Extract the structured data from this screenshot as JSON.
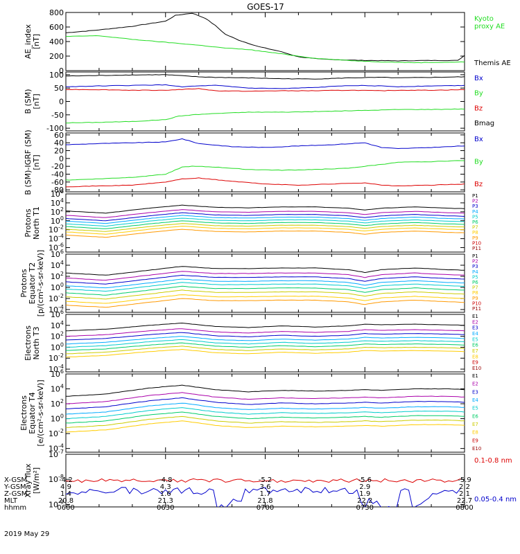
{
  "title": "GOES-17",
  "colors": {
    "black": "#000000",
    "blue": "#0000cc",
    "green": "#22dd22",
    "red": "#dd0000",
    "p1": "#000000",
    "p2": "#aa00aa",
    "p3": "#0000cc",
    "p4": "#00aaff",
    "p5": "#00cccc",
    "p6": "#00cc66",
    "p7": "#cccc00",
    "p8": "#ffcc00",
    "p9": "#ff9900",
    "p10": "#cc0000",
    "p11": "#990000"
  },
  "chart_data": [
    {
      "type": "line",
      "ylabel": "AE_index\n[nT]",
      "ylim": [
        0,
        800
      ],
      "ticks": [
        "800",
        "600",
        "400",
        "200",
        "0"
      ],
      "legend": [
        {
          "label": "Kyoto\nproxy AE",
          "color": "green"
        },
        {
          "label": "Themis AE",
          "color": "black"
        }
      ],
      "series": [
        {
          "name": "Themis AE",
          "color": "black",
          "x": [
            0,
            10,
            20,
            30,
            33,
            38,
            42,
            45,
            48,
            52,
            58,
            64,
            70,
            76,
            82,
            90,
            100,
            110,
            118,
            120
          ],
          "y": [
            520,
            560,
            610,
            680,
            760,
            790,
            720,
            620,
            500,
            420,
            330,
            270,
            190,
            160,
            150,
            140,
            135,
            140,
            140,
            210
          ]
        },
        {
          "name": "Kyoto proxy AE",
          "color": "green",
          "x": [
            0,
            10,
            20,
            30,
            40,
            48,
            55,
            65,
            75,
            85,
            95,
            105,
            115,
            120
          ],
          "y": [
            470,
            480,
            430,
            390,
            350,
            310,
            290,
            230,
            170,
            140,
            120,
            110,
            115,
            120
          ]
        }
      ]
    },
    {
      "type": "line",
      "ylabel": "B (SM)\n[nT]",
      "ylim": [
        -110,
        110
      ],
      "ticks": [
        "100",
        "50",
        "0",
        "-50",
        "-100"
      ],
      "legend": [
        {
          "label": "Bx",
          "color": "blue"
        },
        {
          "label": "By",
          "color": "green"
        },
        {
          "label": "Bz",
          "color": "red"
        },
        {
          "label": "Bmag",
          "color": "black"
        }
      ],
      "series": [
        {
          "name": "Bmag",
          "color": "black",
          "x": [
            0,
            10,
            20,
            30,
            35,
            40,
            45,
            55,
            65,
            75,
            85,
            95,
            100,
            110,
            120
          ],
          "y": [
            95,
            97,
            99,
            100,
            96,
            92,
            90,
            88,
            85,
            84,
            88,
            90,
            88,
            90,
            92
          ]
        },
        {
          "name": "Bx",
          "color": "blue",
          "x": [
            0,
            10,
            20,
            30,
            35,
            40,
            45,
            55,
            65,
            75,
            85,
            95,
            100,
            110,
            120
          ],
          "y": [
            55,
            58,
            60,
            62,
            55,
            58,
            60,
            50,
            48,
            52,
            60,
            58,
            55,
            58,
            60
          ]
        },
        {
          "name": "Bz",
          "color": "red",
          "x": [
            0,
            10,
            20,
            30,
            35,
            40,
            45,
            55,
            65,
            75,
            85,
            95,
            100,
            110,
            120
          ],
          "y": [
            45,
            44,
            42,
            42,
            45,
            48,
            40,
            38,
            40,
            40,
            42,
            40,
            42,
            42,
            44
          ]
        },
        {
          "name": "By",
          "color": "green",
          "x": [
            0,
            10,
            20,
            30,
            34,
            38,
            45,
            55,
            65,
            75,
            85,
            95,
            100,
            110,
            120
          ],
          "y": [
            -80,
            -78,
            -75,
            -68,
            -55,
            -50,
            -45,
            -40,
            -40,
            -38,
            -35,
            -32,
            -30,
            -30,
            -28
          ]
        }
      ]
    },
    {
      "type": "line",
      "ylabel": "B (SM)-IGRF (SM)\n[nT]",
      "ylim": [
        -85,
        65
      ],
      "ticks": [
        "60",
        "40",
        "20",
        "0",
        "-20",
        "-40",
        "-60",
        "-80"
      ],
      "legend": [
        {
          "label": "Bx",
          "color": "blue"
        },
        {
          "label": "By",
          "color": "green"
        },
        {
          "label": "Bz",
          "color": "red"
        }
      ],
      "series": [
        {
          "name": "Bx",
          "color": "blue",
          "x": [
            0,
            10,
            20,
            30,
            35,
            40,
            50,
            60,
            70,
            80,
            90,
            95,
            100,
            110,
            120
          ],
          "y": [
            35,
            38,
            40,
            42,
            50,
            38,
            30,
            28,
            32,
            35,
            40,
            28,
            25,
            28,
            32
          ]
        },
        {
          "name": "By",
          "color": "green",
          "x": [
            0,
            10,
            20,
            30,
            35,
            38,
            45,
            55,
            65,
            75,
            85,
            95,
            100,
            110,
            120
          ],
          "y": [
            -55,
            -52,
            -48,
            -40,
            -22,
            -20,
            -22,
            -28,
            -30,
            -28,
            -25,
            -15,
            -10,
            -8,
            -5
          ]
        },
        {
          "name": "Bz",
          "color": "red",
          "x": [
            0,
            10,
            20,
            30,
            35,
            40,
            50,
            60,
            70,
            80,
            90,
            95,
            100,
            110,
            120
          ],
          "y": [
            -72,
            -70,
            -68,
            -60,
            -52,
            -50,
            -58,
            -65,
            -68,
            -65,
            -62,
            -68,
            -70,
            -68,
            -65
          ]
        }
      ]
    },
    {
      "type": "line",
      "ylog": true,
      "ylabel": "Protons\nNorth T1",
      "ylim": [
        -7,
        6
      ],
      "ticks": [
        "10^6",
        "10^4",
        "10^2",
        "10^0",
        "10^-2",
        "10^-4",
        "10^-6"
      ],
      "legend_small": [
        "P1",
        "P2",
        "P3",
        "P4",
        "P5",
        "P6",
        "P7",
        "P8",
        "P9",
        "P10",
        "P11"
      ],
      "channels": [
        "p1",
        "p2",
        "p3",
        "p4",
        "p5",
        "p6",
        "p7",
        "p8",
        "p9"
      ],
      "channel_base": [
        2.2,
        1.2,
        0.5,
        -0.1,
        -0.7,
        -1.3,
        -1.9,
        -2.5,
        -3.2
      ],
      "shape": {
        "x": [
          0,
          12,
          25,
          35,
          45,
          55,
          65,
          75,
          85,
          90,
          95,
          105,
          115,
          120
        ],
        "y": [
          0,
          -0.5,
          0.6,
          1.3,
          0.8,
          0.7,
          0.9,
          0.9,
          0.6,
          0.2,
          0.6,
          0.9,
          0.6,
          0.5
        ]
      }
    },
    {
      "type": "line",
      "ylog": true,
      "ylabel": "Protons\nEquator T2\n[p/(cm²-s-sr-keV)]",
      "ylim": [
        -4.5,
        6
      ],
      "ticks": [
        "10^6",
        "10^4",
        "10^2",
        "10^0",
        "10^-2",
        "10^-4"
      ],
      "legend_small": [
        "P1",
        "P2",
        "P3",
        "P4",
        "P5",
        "P6",
        "P7",
        "P8",
        "P9",
        "P10",
        "P11"
      ],
      "channels": [
        "p1",
        "p2",
        "p3",
        "p4",
        "p5",
        "p6",
        "p7",
        "p8",
        "p9"
      ],
      "channel_base": [
        2.6,
        1.7,
        1.0,
        0.3,
        -0.3,
        -1.0,
        -1.7,
        -2.5,
        -3.2
      ],
      "shape": {
        "x": [
          0,
          12,
          25,
          35,
          45,
          55,
          65,
          75,
          85,
          90,
          95,
          105,
          115,
          120
        ],
        "y": [
          0,
          -0.4,
          0.5,
          1.2,
          0.8,
          0.8,
          0.9,
          0.9,
          0.6,
          0.1,
          0.6,
          0.9,
          0.6,
          0.5
        ]
      }
    },
    {
      "type": "line",
      "ylog": true,
      "ylabel": "Electrons\nNorth T3",
      "ylim": [
        -4.5,
        6
      ],
      "ticks": [
        "10^6",
        "10^4",
        "10^2",
        "10^0",
        "10^-2",
        "10^-4"
      ],
      "legend_small": [
        "E1",
        "E2",
        "E3",
        "E4",
        "E5",
        "E6",
        "E7",
        "E8",
        "E9",
        "E10"
      ],
      "channels": [
        "p1",
        "p2",
        "p3",
        "p4",
        "p5",
        "p6",
        "p7",
        "p8"
      ],
      "channel_base": [
        3.0,
        2.0,
        1.3,
        0.6,
        0.0,
        -0.6,
        -1.2,
        -1.8
      ],
      "shape": {
        "x": [
          0,
          12,
          25,
          35,
          45,
          55,
          65,
          75,
          85,
          90,
          95,
          105,
          115,
          120
        ],
        "y": [
          0,
          0.3,
          1.0,
          1.4,
          0.8,
          0.6,
          0.9,
          0.7,
          0.9,
          1.2,
          1.1,
          1.2,
          1.1,
          1.0
        ]
      }
    },
    {
      "type": "line",
      "ylog": true,
      "ylabel": "Electrons\nEquator T4\n[e/(cm²-s-sr-keV)]",
      "ylim": [
        -4.5,
        6
      ],
      "ticks": [
        "10^6",
        "10^4",
        "10^2",
        "10^0",
        "10^-2",
        "10^-4"
      ],
      "legend_small": [
        "E1",
        "E2",
        "E3",
        "E4",
        "E5",
        "E6",
        "E7",
        "E8",
        "E9",
        "E10"
      ],
      "channels": [
        "p1",
        "p2",
        "p3",
        "p4",
        "p5",
        "p6",
        "p7",
        "p8"
      ],
      "channel_base": [
        3.0,
        2.0,
        1.3,
        0.6,
        0.0,
        -0.6,
        -1.2,
        -1.8
      ],
      "shape": {
        "x": [
          0,
          12,
          25,
          35,
          45,
          55,
          65,
          75,
          85,
          90,
          95,
          105,
          115,
          120
        ],
        "y": [
          0,
          0.3,
          1.1,
          1.5,
          0.9,
          0.6,
          0.8,
          0.7,
          0.8,
          0.9,
          0.8,
          1.0,
          1.0,
          0.9
        ]
      }
    },
    {
      "type": "line",
      "ylog": true,
      "ylabel": "Xray flux\n[W/m²]",
      "ylim": [
        -9.1,
        -7
      ],
      "ticks": [
        "10^-7",
        "10^-8",
        "10^-9"
      ],
      "legend": [
        {
          "label": "0.1-0.8 nm",
          "color": "red"
        },
        {
          "label": "0.05-0.4 nm",
          "color": "blue"
        }
      ],
      "xrays": true
    }
  ],
  "xaxis": {
    "range_minutes": [
      0,
      120
    ],
    "rows": [
      {
        "label": "X-GSM",
        "values": [
          "-4.2",
          "-4.8",
          "-5.2",
          "-5.6",
          "-5.9"
        ]
      },
      {
        "label": "Y-GSM",
        "values": [
          "4.9",
          "4.3",
          "3.6",
          "2.9",
          "2.2"
        ]
      },
      {
        "label": "Z-GSM",
        "values": [
          "1.4",
          "1.6",
          "1.7",
          "1.9",
          "2.1"
        ]
      },
      {
        "label": "MLT",
        "values": [
          "20.8",
          "21.3",
          "21.8",
          "22.2",
          "22.7"
        ]
      },
      {
        "label": "hhmm",
        "values": [
          "0600",
          "0630",
          "0700",
          "0730",
          "0800"
        ]
      }
    ],
    "date": "2019 May 29"
  }
}
